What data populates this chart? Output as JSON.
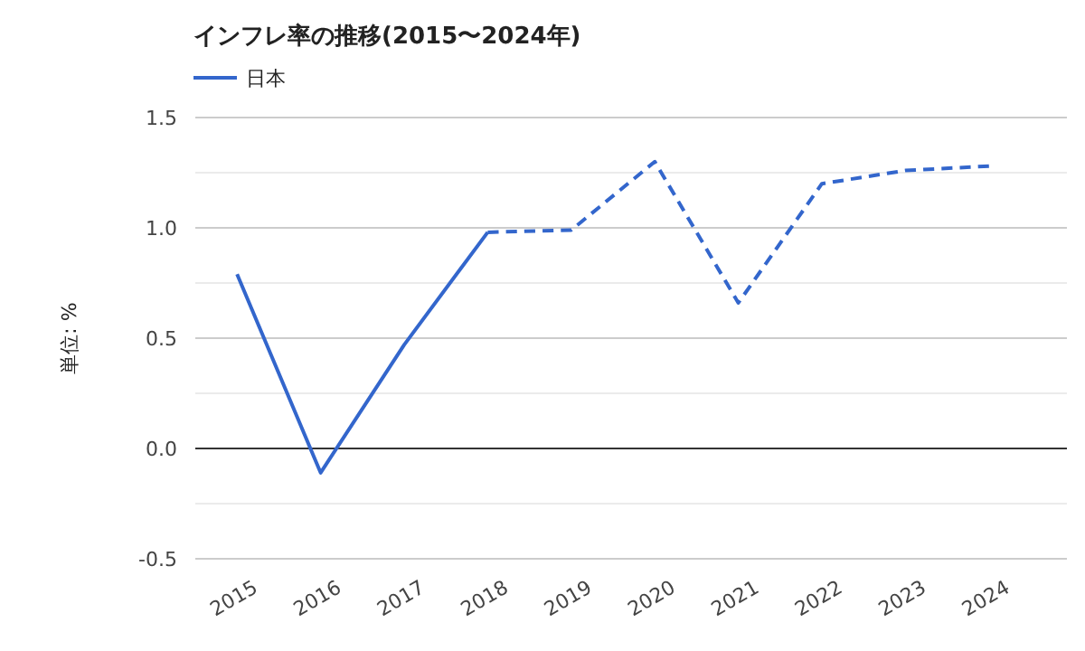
{
  "chart_data": {
    "type": "line",
    "title": "インフレ率の推移(2015〜2024年)",
    "ylabel": "単位: %",
    "categories": [
      "2015",
      "2016",
      "2017",
      "2018",
      "2019",
      "2020",
      "2021",
      "2022",
      "2023",
      "2024"
    ],
    "series": [
      {
        "name": "日本",
        "color": "#3366cc",
        "line_style": "solid",
        "values": [
          0.79,
          -0.11,
          0.47,
          0.98,
          null,
          null,
          null,
          null,
          null,
          null
        ]
      },
      {
        "color": "#3366cc",
        "line_style": "dashed",
        "values": [
          null,
          null,
          null,
          0.98,
          0.99,
          1.3,
          0.66,
          1.2,
          1.26,
          1.28
        ]
      }
    ],
    "ylim": [
      -0.5,
      1.5
    ],
    "yticks": [
      {
        "value": -0.5,
        "label": "-0.5"
      },
      {
        "value": -0.25,
        "label": null
      },
      {
        "value": 0,
        "label": "0.0"
      },
      {
        "value": 0.25,
        "label": null
      },
      {
        "value": 0.5,
        "label": "0.5"
      },
      {
        "value": 0.75,
        "label": null
      },
      {
        "value": 1,
        "label": "1.0"
      },
      {
        "value": 1.25,
        "label": null
      },
      {
        "value": 1.5,
        "label": "1.5"
      }
    ],
    "ref_lines": [
      {
        "axis": "y",
        "value": 0,
        "color": "#333333"
      }
    ],
    "grid": "y",
    "legend": "top left"
  }
}
